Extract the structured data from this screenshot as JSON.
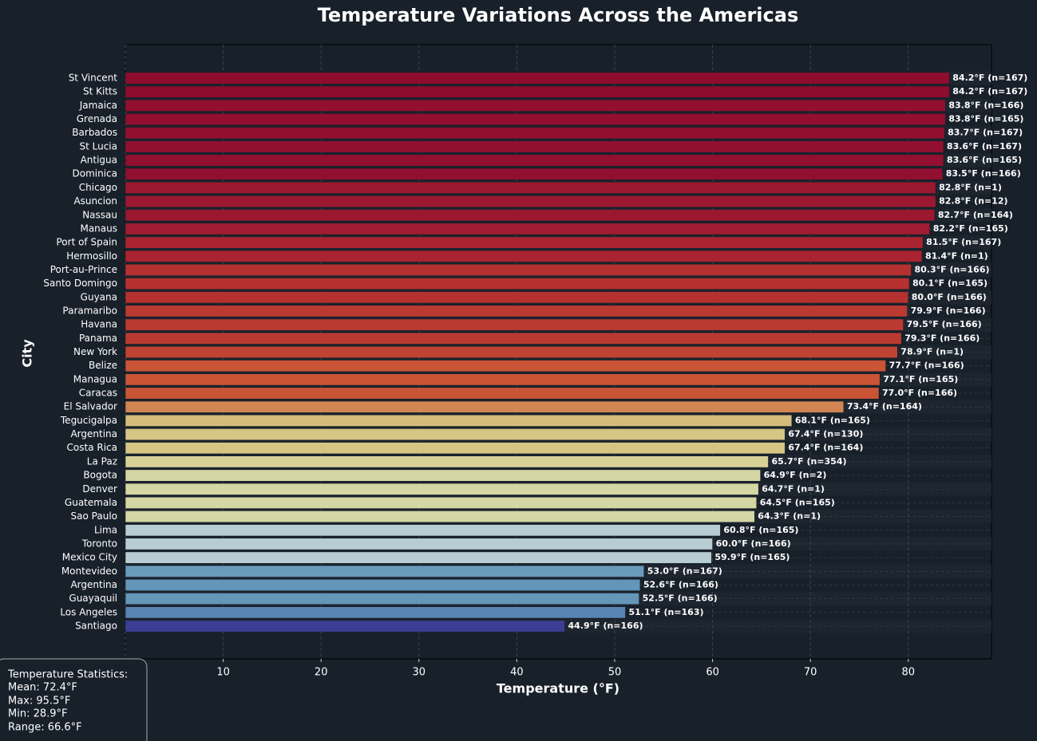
{
  "chart_data": {
    "type": "hbar",
    "title": "Temperature Variations Across the Americas",
    "xlabel": "Temperature (°F)",
    "ylabel": "City",
    "categories": [
      "St Vincent",
      "St Kitts",
      "Jamaica",
      "Grenada",
      "Barbados",
      "St Lucia",
      "Antigua",
      "Dominica",
      "Chicago",
      "Asuncion",
      "Nassau",
      "Manaus",
      "Port of Spain",
      "Hermosillo",
      "Port-au-Prince",
      "Santo Domingo",
      "Guyana",
      "Paramaribo",
      "Havana",
      "Panama",
      "New York",
      "Belize",
      "Managua",
      "Caracas",
      "El Salvador",
      "Tegucigalpa",
      "Argentina",
      "Costa Rica",
      "La Paz",
      "Bogota",
      "Denver",
      "Guatemala",
      "Sao Paulo",
      "Lima",
      "Toronto",
      "Mexico City",
      "Montevideo",
      "Argentina",
      "Guayaquil",
      "Los Angeles",
      "Santiago"
    ],
    "values": [
      84.2,
      84.2,
      83.8,
      83.8,
      83.7,
      83.6,
      83.6,
      83.5,
      82.8,
      82.8,
      82.7,
      82.2,
      81.5,
      81.4,
      80.3,
      80.1,
      80.0,
      79.9,
      79.5,
      79.3,
      78.9,
      77.7,
      77.1,
      77.0,
      73.4,
      68.1,
      67.4,
      67.4,
      65.7,
      64.9,
      64.7,
      64.5,
      64.3,
      60.8,
      60.0,
      59.9,
      53.0,
      52.6,
      52.5,
      51.1,
      44.9
    ],
    "value_labels": [
      "84.2°F (n=167)",
      "84.2°F (n=167)",
      "83.8°F (n=166)",
      "83.8°F (n=165)",
      "83.7°F (n=167)",
      "83.6°F (n=167)",
      "83.6°F (n=165)",
      "83.5°F (n=166)",
      "82.8°F (n=1)",
      "82.8°F (n=12)",
      "82.7°F (n=164)",
      "82.2°F (n=165)",
      "81.5°F (n=167)",
      "81.4°F (n=1)",
      "80.3°F (n=166)",
      "80.1°F (n=165)",
      "80.0°F (n=166)",
      "79.9°F (n=166)",
      "79.5°F (n=166)",
      "79.3°F (n=166)",
      "78.9°F (n=1)",
      "77.7°F (n=166)",
      "77.1°F (n=165)",
      "77.0°F (n=166)",
      "73.4°F (n=164)",
      "68.1°F (n=165)",
      "67.4°F (n=130)",
      "67.4°F (n=164)",
      "65.7°F (n=354)",
      "64.9°F (n=2)",
      "64.7°F (n=1)",
      "64.5°F (n=165)",
      "64.3°F (n=1)",
      "60.8°F (n=165)",
      "60.0°F (n=166)",
      "59.9°F (n=165)",
      "53.0°F (n=167)",
      "52.6°F (n=166)",
      "52.5°F (n=166)",
      "51.1°F (n=163)",
      "44.9°F (n=166)"
    ],
    "colors": [
      "#8e0c2e",
      "#8e0c2e",
      "#920f2f",
      "#920f2f",
      "#920f2f",
      "#920f2f",
      "#920f2f",
      "#920f2f",
      "#9b1830",
      "#9b1830",
      "#9b1830",
      "#a01c31",
      "#a92331",
      "#a92331",
      "#b5312f",
      "#b5312f",
      "#b5312f",
      "#ba3a31",
      "#ba3a31",
      "#ba3a31",
      "#bf4332",
      "#c95436",
      "#c95436",
      "#c95436",
      "#d08552",
      "#d4bd7a",
      "#d6c583",
      "#d6c583",
      "#d8d097",
      "#d4d6a3",
      "#d4d6a3",
      "#d4d6a3",
      "#d4d6a3",
      "#b8cdd1",
      "#b8cdd1",
      "#b8cdd1",
      "#6a9bbb",
      "#6396b8",
      "#6396b8",
      "#5885b3",
      "#3b3f93"
    ],
    "xlim": [
      0,
      88.5
    ],
    "xticks": [
      0,
      10,
      20,
      30,
      40,
      50,
      60,
      70,
      80
    ],
    "grid": true,
    "annotation": {
      "title": "Temperature Statistics:",
      "lines": [
        "Mean: 72.4°F",
        "Max: 95.5°F",
        "Min: 28.9°F",
        "Range: 66.6°F"
      ]
    }
  }
}
